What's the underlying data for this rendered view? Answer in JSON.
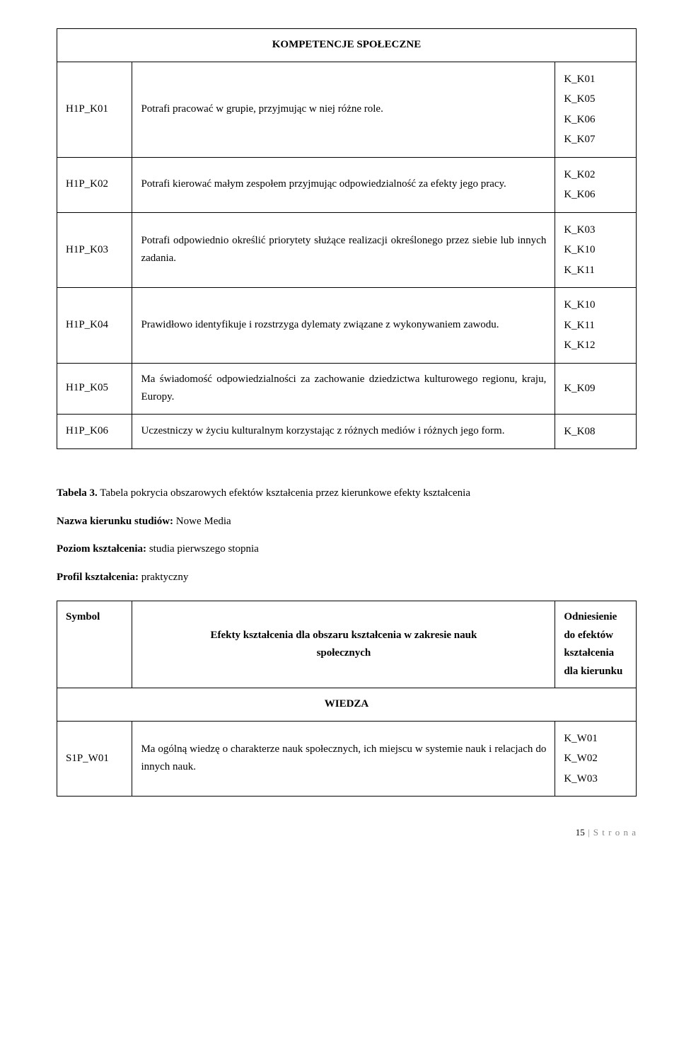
{
  "table1": {
    "header": "KOMPETENCJE SPOŁECZNE",
    "rows": [
      {
        "code": "H1P_K01",
        "desc": "Potrafi pracować w grupie, przyjmując w niej różne role.",
        "refs": [
          "K_K01",
          "K_K05",
          "K_K06",
          "K_K07"
        ]
      },
      {
        "code": "H1P_K02",
        "desc": "Potrafi kierować małym zespołem przyjmując odpowiedzialność za efekty jego pracy.",
        "refs": [
          "K_K02",
          "K_K06"
        ]
      },
      {
        "code": "H1P_K03",
        "desc": "Potrafi odpowiednio określić priorytety służące realizacji określonego przez siebie lub innych zadania.",
        "refs": [
          "K_K03",
          "K_K10",
          "K_K11"
        ]
      },
      {
        "code": "H1P_K04",
        "desc": "Prawidłowo identyfikuje i rozstrzyga dylematy związane z wykonywaniem zawodu.",
        "refs": [
          "K_K10",
          "K_K11",
          "K_K12"
        ]
      },
      {
        "code": "H1P_K05",
        "desc": "Ma świadomość odpowiedzialności za zachowanie dziedzictwa kulturowego regionu, kraju, Europy.",
        "refs": [
          "K_K09"
        ]
      },
      {
        "code": "H1P_K06",
        "desc": "Uczestniczy w życiu kulturalnym korzystając z różnych mediów i różnych jego form.",
        "refs": [
          "K_K08"
        ]
      }
    ]
  },
  "intro": {
    "caption_bold": "Tabela 3.",
    "caption_rest": " Tabela pokrycia obszarowych efektów kształcenia przez kierunkowe efekty kształcenia",
    "line1_label": "Nazwa kierunku studiów:",
    "line1_value": "  Nowe Media",
    "line2_label": "Poziom kształcenia:",
    "line2_value": "  studia pierwszego stopnia",
    "line3_label": "Profil kształcenia:",
    "line3_value": "  praktyczny"
  },
  "table2": {
    "headers": {
      "c1": "Symbol",
      "c2_line1": "Efekty kształcenia dla obszaru kształcenia w zakresie nauk",
      "c2_line2": "społecznych",
      "c3_line1": "Odniesienie",
      "c3_line2": "do efektów",
      "c3_line3": "kształcenia",
      "c3_line4": "dla kierunku"
    },
    "section": "WIEDZA",
    "rows": [
      {
        "code": "S1P_W01",
        "desc": "Ma ogólną wiedzę o charakterze nauk społecznych, ich miejscu w systemie nauk i relacjach do innych nauk.",
        "refs": [
          "K_W01",
          "K_W02",
          "K_W03"
        ]
      }
    ]
  },
  "footer": {
    "pagenum": "15",
    "sep": " | ",
    "label": "S t r o n a"
  }
}
